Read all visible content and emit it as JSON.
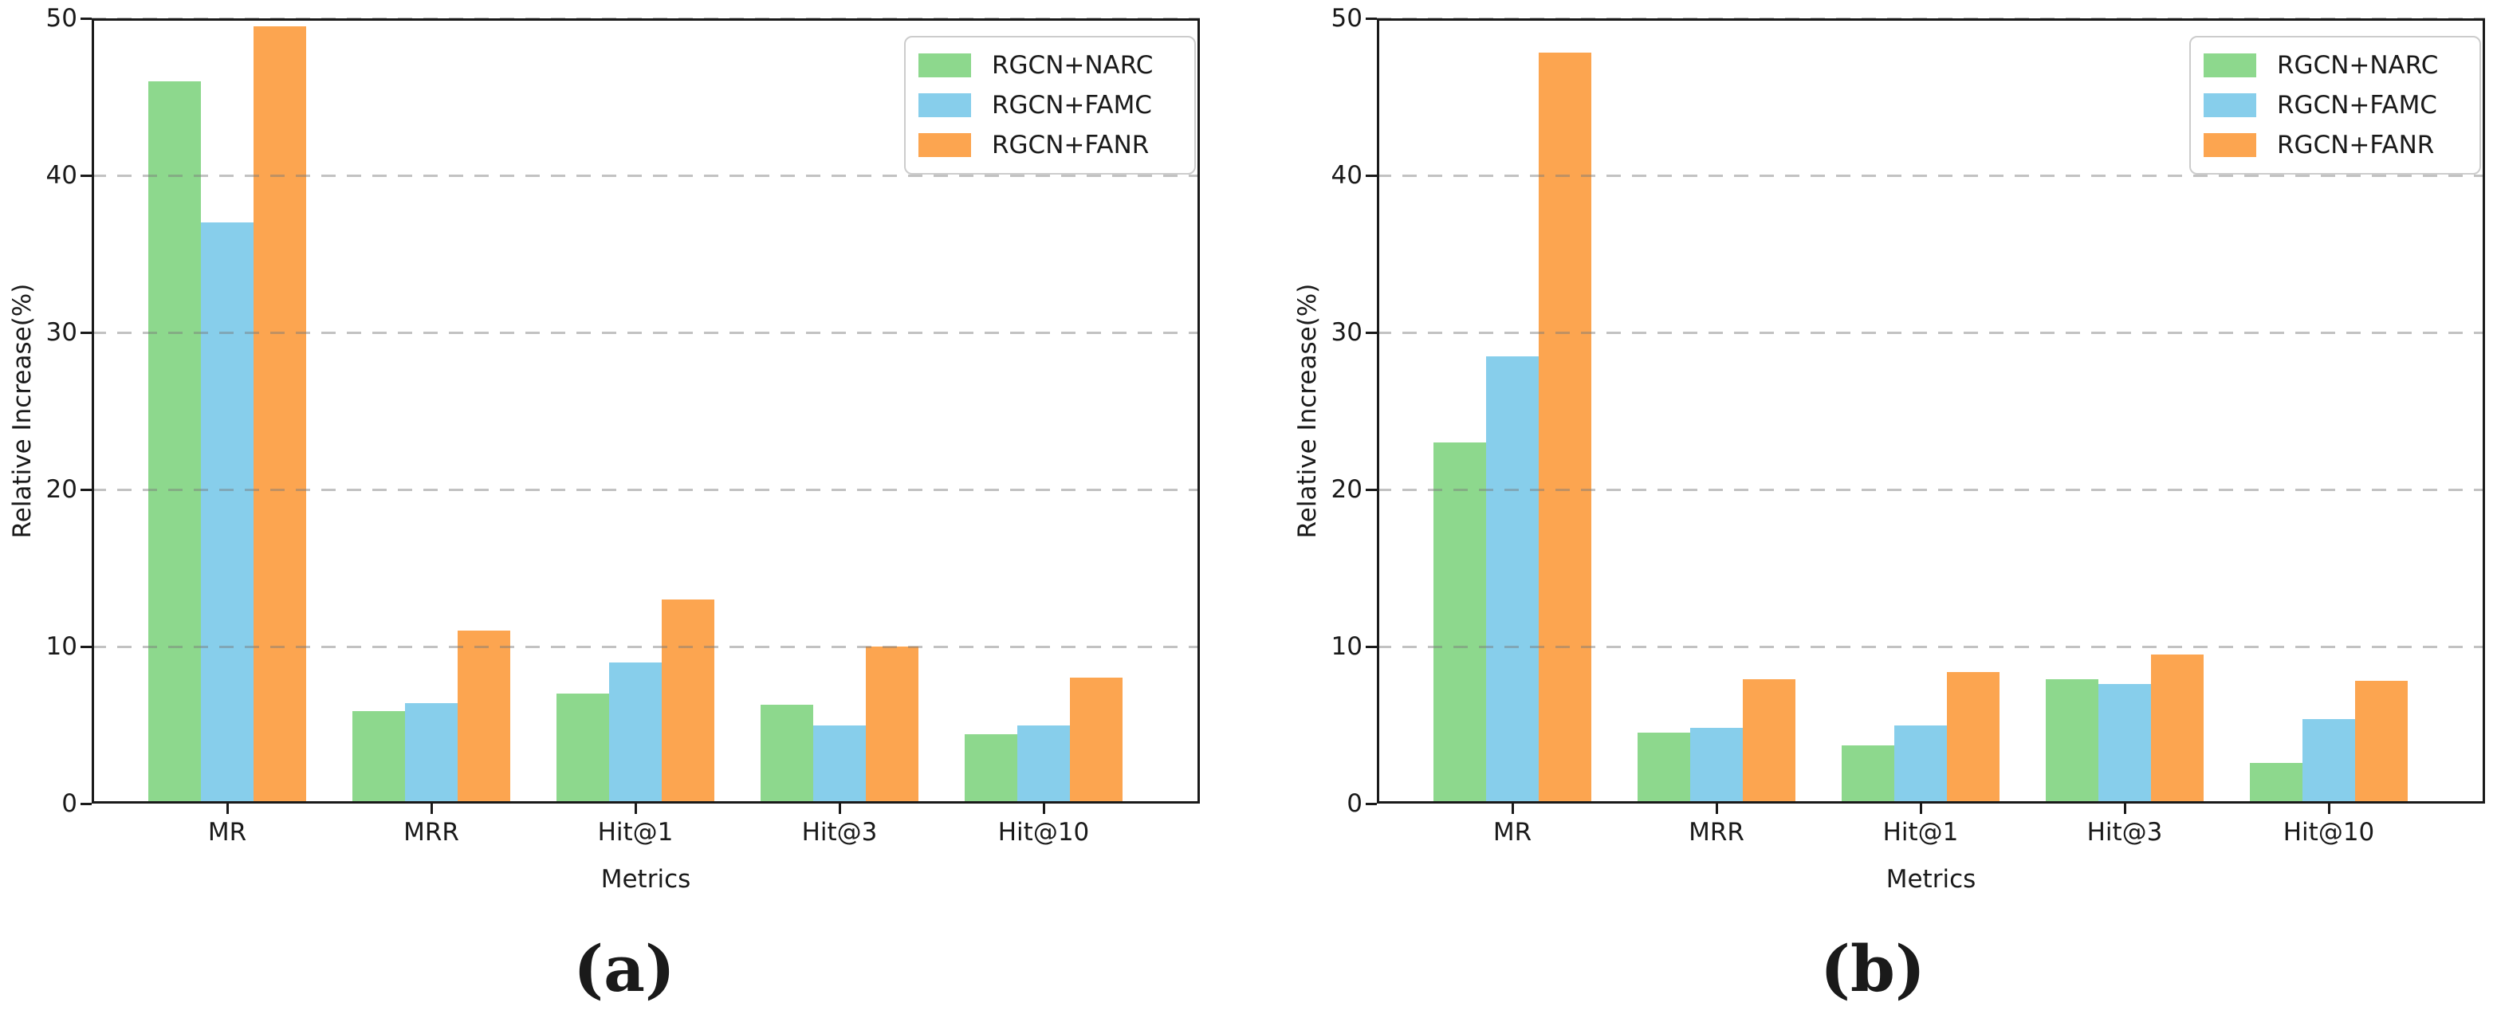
{
  "figure": {
    "background": "#ffffff",
    "spine_color": "#1a1a1a",
    "grid_color": "#c8c8c8",
    "text_color": "#1a1a1a"
  },
  "chart_data": [
    {
      "type": "bar",
      "panel": "a",
      "caption": "(a)",
      "xlabel": "Metrics",
      "ylabel": "Relative Increase(%)",
      "ylim": [
        0,
        50
      ],
      "yticks": [
        0,
        10,
        20,
        30,
        40,
        50
      ],
      "grid": "horizontal-dashed",
      "legend_position": "upper-right",
      "categories": [
        "MR",
        "MRR",
        "Hit@1",
        "Hit@3",
        "Hit@10"
      ],
      "series": [
        {
          "name": "RGCN+NARC",
          "color": "#8dd88d",
          "values": [
            46.0,
            5.9,
            7.0,
            6.3,
            4.4
          ]
        },
        {
          "name": "RGCN+FAMC",
          "color": "#87ceeb",
          "values": [
            37.0,
            6.4,
            9.0,
            5.0,
            5.0
          ]
        },
        {
          "name": "RGCN+FANR",
          "color": "#fca550",
          "values": [
            49.5,
            11.0,
            13.0,
            10.0,
            8.0
          ]
        }
      ]
    },
    {
      "type": "bar",
      "panel": "b",
      "caption": "(b)",
      "xlabel": "Metrics",
      "ylabel": "Relative Increase(%)",
      "ylim": [
        0,
        50
      ],
      "yticks": [
        0,
        10,
        20,
        30,
        40,
        50
      ],
      "grid": "horizontal-dashed",
      "legend_position": "upper-right",
      "categories": [
        "MR",
        "MRR",
        "Hit@1",
        "Hit@3",
        "Hit@10"
      ],
      "series": [
        {
          "name": "RGCN+NARC",
          "color": "#8dd88d",
          "values": [
            23.0,
            4.5,
            3.7,
            7.9,
            2.6
          ]
        },
        {
          "name": "RGCN+FAMC",
          "color": "#87ceeb",
          "values": [
            28.5,
            4.8,
            5.0,
            7.6,
            5.4
          ]
        },
        {
          "name": "RGCN+FANR",
          "color": "#fca550",
          "values": [
            47.8,
            7.9,
            8.4,
            9.5,
            7.8
          ]
        }
      ]
    }
  ]
}
